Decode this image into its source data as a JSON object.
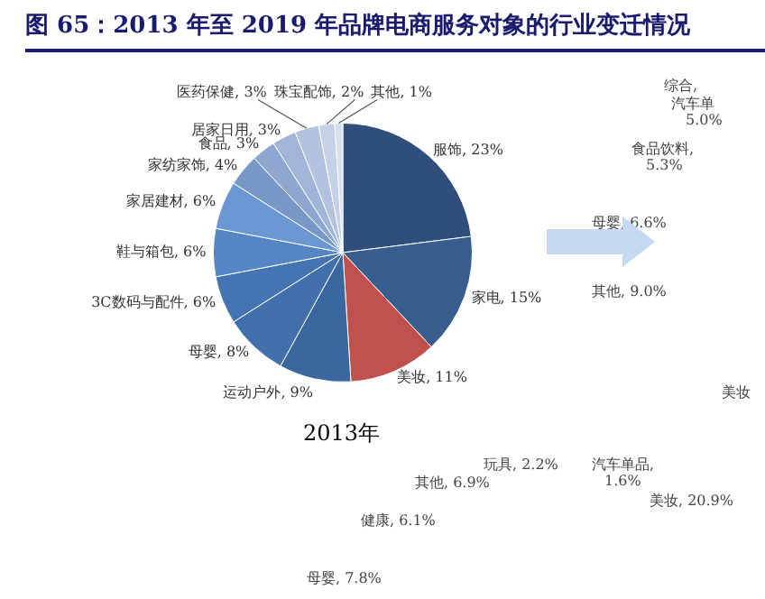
{
  "chart_data": [
    {
      "type": "pie",
      "title": "图 65：2013 年至 2019 年品牌电商服务对象的行业变迁情况",
      "subtitle": "2013年",
      "categories": [
        "服饰, 23%",
        "家电, 15%",
        "美妆, 11%",
        "运动户外, 9%",
        "母婴, 8%",
        "3C数码与配件, 6%",
        "鞋与箱包, 6%",
        "家居建材, 6%",
        "家纺家饰, 4%",
        "食品, 3%",
        "居家日用, 3%",
        "医药保健, 3%",
        "珠宝配饰, 2%",
        "其他, 1%"
      ],
      "values": [
        23,
        15,
        11,
        9,
        8,
        6,
        6,
        6,
        4,
        3,
        3,
        3,
        2,
        1
      ],
      "colors": [
        "#2f4f7a",
        "#375e8e",
        "#c0504d",
        "#3b67a0",
        "#4170ad",
        "#4574b2",
        "#5585c4",
        "#6b98d2",
        "#7898c8",
        "#8da7cf",
        "#a1b5d8",
        "#b3c3df",
        "#c5d1e7",
        "#d8e0ef"
      ],
      "legend": false
    },
    {
      "type": "other",
      "annotations": [
        "综合,",
        "汽车单",
        "5.0%",
        "食品饮料,",
        "5.3%",
        "母婴, 6.6%",
        "其他, 9.0%",
        "美妆"
      ]
    },
    {
      "type": "other",
      "annotations": [
        "玩具, 2.2%",
        "汽车单品,",
        "1.6%",
        "其他, 6.9%",
        "健康, 6.1%",
        "母婴, 7.8%",
        "美妆, 20.9%"
      ]
    }
  ]
}
